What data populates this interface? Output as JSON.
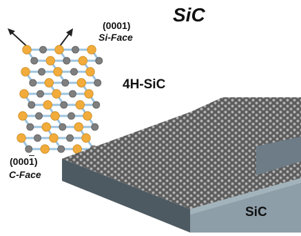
{
  "title": "SiC",
  "lattice": {
    "polytype_label": "4H-SiC",
    "top_face": {
      "miller": "(0001)",
      "name": "Si-Face"
    },
    "bottom_face": {
      "miller": "(0001)",
      "bar_over": "1",
      "name": "C-Face"
    }
  },
  "slab": {
    "label": "SiC"
  },
  "colors": {
    "si_atom": "#f2ac3b",
    "c_atom": "#7f7f7f",
    "bond": "#9cc3de",
    "slab_top": "#585858",
    "slab_front": "#8d9ea9",
    "slab_side": "#4e5a62",
    "step_face": "#6d7c86"
  }
}
